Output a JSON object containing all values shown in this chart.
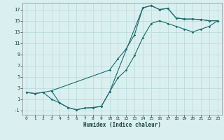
{
  "title": "",
  "xlabel": "Humidex (Indice chaleur)",
  "background_color": "#daf0f0",
  "grid_color": "#b8d8d8",
  "line_color": "#1a6b6b",
  "xlim": [
    -0.5,
    23.5
  ],
  "ylim": [
    -1.8,
    18.2
  ],
  "xticks": [
    0,
    1,
    2,
    3,
    4,
    5,
    6,
    7,
    8,
    9,
    10,
    11,
    12,
    13,
    14,
    15,
    16,
    17,
    18,
    19,
    20,
    21,
    22,
    23
  ],
  "yticks": [
    -1,
    1,
    3,
    5,
    7,
    9,
    11,
    13,
    15,
    17
  ],
  "curve1_x": [
    0,
    1,
    2,
    3,
    10,
    11,
    12,
    13,
    14,
    15,
    16,
    17,
    18,
    19,
    20,
    21,
    22,
    23
  ],
  "curve1_y": [
    2.2,
    2.0,
    2.2,
    2.5,
    6.2,
    8.2,
    10.0,
    12.5,
    17.3,
    17.7,
    17.0,
    17.2,
    15.5,
    15.3,
    15.3,
    15.2,
    15.0,
    15.0
  ],
  "curve2_x": [
    0,
    1,
    2,
    3,
    4,
    5,
    6,
    7,
    8,
    9,
    10,
    14,
    15,
    16,
    17,
    18,
    19,
    20,
    21,
    22,
    23
  ],
  "curve2_y": [
    2.2,
    2.0,
    2.2,
    1.0,
    0.3,
    -0.5,
    -0.9,
    -0.6,
    -0.5,
    -0.3,
    2.3,
    17.3,
    17.7,
    17.0,
    17.2,
    15.5,
    15.3,
    15.3,
    15.2,
    15.0,
    15.0
  ],
  "curve3_x": [
    3,
    4,
    5,
    6,
    7,
    8,
    9,
    10,
    11,
    12,
    13,
    14,
    15,
    16,
    17,
    18,
    19,
    20,
    21,
    22,
    23
  ],
  "curve3_y": [
    2.5,
    0.3,
    -0.5,
    -0.9,
    -0.6,
    -0.5,
    -0.3,
    2.3,
    4.8,
    6.2,
    8.8,
    12.0,
    14.5,
    15.0,
    14.5,
    14.0,
    13.5,
    13.0,
    13.5,
    14.0,
    15.0
  ]
}
